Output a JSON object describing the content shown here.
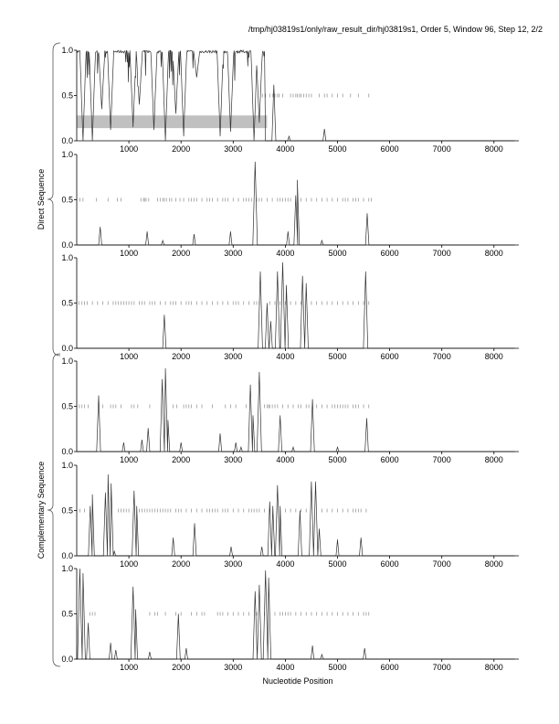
{
  "title": "/tmp/hj03819s1/only/raw_result_dir/hj03819s1, Order 5, Window 96, Step 12, 2/2",
  "xlabel": "Nucleotide Position",
  "group_labels": [
    "Direct Sequence",
    "Complementary Sequence"
  ],
  "chart_data": {
    "type": "line",
    "xlim": [
      0,
      8400
    ],
    "ylim": [
      0,
      1
    ],
    "xticks": [
      1000,
      2000,
      3000,
      4000,
      5000,
      6000,
      7000,
      8000
    ],
    "yticks": [
      "0.0",
      "0.5",
      "1.0"
    ],
    "line_color": "#333333",
    "tick_color": "#999999",
    "panels": [
      {
        "group": "Direct Sequence",
        "frame": 1,
        "highlight": {
          "x": [
            0,
            3650
          ],
          "y": [
            0.14,
            0.28
          ],
          "color": "#c0c0c0"
        },
        "dense": {
          "x": [
            0,
            3600
          ],
          "dips": [
            [
              120,
              0.0
            ],
            [
              300,
              0.0
            ],
            [
              480,
              0.35
            ],
            [
              650,
              0.12
            ],
            [
              1080,
              0.15
            ],
            [
              1200,
              0.4
            ],
            [
              1480,
              0.12
            ],
            [
              1700,
              0.0
            ],
            [
              1900,
              0.3
            ],
            [
              2050,
              0.05
            ],
            [
              2300,
              0.7
            ],
            [
              2750,
              0.05
            ],
            [
              2950,
              0.1
            ],
            [
              3400,
              0.0
            ],
            [
              3500,
              0.2
            ]
          ]
        },
        "peaks": [
          [
            3780,
            0.62
          ],
          [
            4070,
            0.05
          ],
          [
            4750,
            0.13
          ]
        ],
        "ticks": [
          3560,
          3620,
          3700,
          3760,
          3800,
          3850,
          3880,
          3950,
          4100,
          4150,
          4200,
          4230,
          4270,
          4300,
          4350,
          4400,
          4450,
          4500,
          4650,
          4750,
          4800,
          4900,
          5000,
          5100,
          5250,
          5400,
          5600
        ]
      },
      {
        "group": "Direct Sequence",
        "frame": 2,
        "peaks": [
          [
            450,
            0.2
          ],
          [
            1350,
            0.15
          ],
          [
            1650,
            0.05
          ],
          [
            2250,
            0.12
          ],
          [
            2950,
            0.15
          ],
          [
            3420,
            0.92
          ],
          [
            4050,
            0.15
          ],
          [
            4200,
            0.55
          ],
          [
            4230,
            0.72
          ],
          [
            4700,
            0.05
          ],
          [
            5570,
            0.35
          ]
        ],
        "ticks": [
          60,
          120,
          380,
          600,
          780,
          850,
          1230,
          1280,
          1300,
          1330,
          1380,
          1550,
          1600,
          1650,
          1680,
          1720,
          1780,
          1820,
          1900,
          1980,
          2050,
          2150,
          2200,
          2250,
          2300,
          2400,
          2500,
          2550,
          2600,
          2700,
          2800,
          2850,
          2900,
          3000,
          3100,
          3200,
          3250,
          3300,
          3350,
          3450,
          3500,
          3550,
          3650,
          3750,
          3850,
          3900,
          3950,
          4000,
          4050,
          4100,
          4300,
          4400,
          4500,
          4600,
          4700,
          4800,
          4900,
          5000,
          5100,
          5150,
          5200,
          5300,
          5350,
          5400,
          5500,
          5600,
          5650
        ]
      },
      {
        "group": "Direct Sequence",
        "frame": 3,
        "peaks": [
          [
            1680,
            0.37
          ],
          [
            3520,
            0.85
          ],
          [
            3650,
            0.5
          ],
          [
            3720,
            0.3
          ],
          [
            3850,
            0.85
          ],
          [
            3950,
            0.95
          ],
          [
            4020,
            0.7
          ],
          [
            4330,
            0.8
          ],
          [
            4400,
            0.72
          ],
          [
            5540,
            0.85
          ]
        ],
        "ticks": [
          40,
          100,
          150,
          200,
          300,
          400,
          500,
          600,
          700,
          750,
          800,
          850,
          900,
          950,
          1000,
          1050,
          1100,
          1200,
          1250,
          1300,
          1400,
          1450,
          1500,
          1600,
          1700,
          1800,
          1850,
          1900,
          2000,
          2100,
          2150,
          2200,
          2300,
          2400,
          2500,
          2600,
          2700,
          2800,
          2900,
          3000,
          3050,
          3100,
          3200,
          3300,
          3400,
          3450,
          3500,
          3700,
          3800,
          3900,
          4000,
          4100,
          4200,
          4300,
          4500,
          4600,
          4700,
          4800,
          4900,
          5000,
          5100,
          5200,
          5300,
          5400,
          5500,
          5600
        ]
      },
      {
        "group": "Complementary Sequence",
        "frame": 1,
        "peaks": [
          [
            420,
            0.62
          ],
          [
            900,
            0.1
          ],
          [
            1250,
            0.13
          ],
          [
            1370,
            0.26
          ],
          [
            1640,
            0.8
          ],
          [
            1700,
            0.92
          ],
          [
            1750,
            0.35
          ],
          [
            2000,
            0.1
          ],
          [
            2750,
            0.2
          ],
          [
            3050,
            0.1
          ],
          [
            3150,
            0.05
          ],
          [
            3330,
            0.74
          ],
          [
            3380,
            0.4
          ],
          [
            3500,
            0.88
          ],
          [
            3900,
            0.4
          ],
          [
            4150,
            0.05
          ],
          [
            4520,
            0.58
          ],
          [
            5000,
            0.05
          ],
          [
            5560,
            0.37
          ]
        ],
        "ticks": [
          50,
          100,
          150,
          220,
          500,
          650,
          700,
          750,
          850,
          1050,
          1100,
          1170,
          1400,
          1850,
          1920,
          2050,
          2100,
          2150,
          2200,
          2300,
          2400,
          2600,
          2850,
          2950,
          3050,
          3250,
          3600,
          3650,
          3680,
          3700,
          3750,
          3800,
          3850,
          3950,
          4050,
          4150,
          4250,
          4300,
          4400,
          4450,
          4600,
          4700,
          4800,
          4900,
          4950,
          5000,
          5050,
          5100,
          5150,
          5200,
          5300,
          5350,
          5400,
          5500,
          5600
        ]
      },
      {
        "group": "Complementary Sequence",
        "frame": 2,
        "peaks": [
          [
            260,
            0.55
          ],
          [
            300,
            0.68
          ],
          [
            550,
            0.7
          ],
          [
            600,
            0.9
          ],
          [
            660,
            0.8
          ],
          [
            720,
            0.05
          ],
          [
            1100,
            0.72
          ],
          [
            1150,
            0.55
          ],
          [
            1850,
            0.2
          ],
          [
            2260,
            0.36
          ],
          [
            2960,
            0.1
          ],
          [
            3550,
            0.1
          ],
          [
            3700,
            0.6
          ],
          [
            3760,
            0.55
          ],
          [
            3850,
            0.78
          ],
          [
            3900,
            0.55
          ],
          [
            4280,
            0.5
          ],
          [
            4500,
            0.82
          ],
          [
            4580,
            0.82
          ],
          [
            4650,
            0.3
          ],
          [
            5000,
            0.18
          ],
          [
            5450,
            0.2
          ]
        ],
        "ticks": [
          60,
          150,
          800,
          850,
          900,
          950,
          1000,
          1200,
          1250,
          1300,
          1350,
          1400,
          1450,
          1500,
          1550,
          1600,
          1650,
          1700,
          1750,
          1800,
          1900,
          1950,
          2000,
          2100,
          2200,
          2300,
          2400,
          2500,
          2550,
          2600,
          2650,
          2700,
          2800,
          2850,
          2900,
          3000,
          3100,
          3200,
          3300,
          3350,
          3400,
          3450,
          3500,
          3600,
          3900,
          4000,
          4100,
          4200,
          4300,
          4400,
          4700,
          4800,
          4900,
          5000,
          5100,
          5200,
          5300,
          5350,
          5400,
          5450,
          5550
        ]
      },
      {
        "group": "Complementary Sequence",
        "frame": 3,
        "peaks": [
          [
            60,
            1.0
          ],
          [
            120,
            0.95
          ],
          [
            220,
            0.4
          ],
          [
            650,
            0.18
          ],
          [
            750,
            0.1
          ],
          [
            1080,
            0.8
          ],
          [
            1130,
            0.55
          ],
          [
            1400,
            0.08
          ],
          [
            1950,
            0.5
          ],
          [
            2100,
            0.12
          ],
          [
            3420,
            0.75
          ],
          [
            3500,
            0.82
          ],
          [
            3620,
            0.98
          ],
          [
            3680,
            0.9
          ],
          [
            4520,
            0.15
          ],
          [
            4700,
            0.05
          ],
          [
            5520,
            0.12
          ]
        ],
        "ticks": [
          250,
          300,
          350,
          1400,
          1500,
          1550,
          1700,
          1900,
          2000,
          2200,
          2300,
          2400,
          2450,
          2700,
          2750,
          2800,
          2900,
          3000,
          3100,
          3200,
          3300,
          3450,
          3600,
          3800,
          3900,
          3950,
          4000,
          4050,
          4100,
          4200,
          4300,
          4400,
          4500,
          4600,
          4700,
          4800,
          4900,
          5000,
          5100,
          5200,
          5300,
          5400,
          5500,
          5550,
          5600
        ]
      }
    ]
  }
}
